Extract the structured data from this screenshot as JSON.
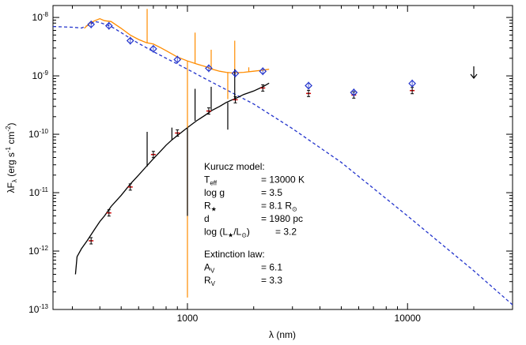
{
  "chart_data": {
    "type": "line",
    "title": "",
    "xlabel": "λ (nm)",
    "ylabel": "λF_λ (erg s⁻¹ cm⁻²)",
    "xscale": "log",
    "yscale": "log",
    "xlim": [
      245,
      30000
    ],
    "ylim": [
      1e-13,
      1.6e-08
    ],
    "x_ticks": [
      {
        "value": 1000,
        "label": "1000"
      },
      {
        "value": 10000,
        "label": "10000"
      }
    ],
    "y_ticks": [
      {
        "value": 1e-13,
        "base": "10",
        "exp": "-13"
      },
      {
        "value": 1e-12,
        "base": "10",
        "exp": "-12"
      },
      {
        "value": 1e-11,
        "base": "10",
        "exp": "-11"
      },
      {
        "value": 1e-10,
        "base": "10",
        "exp": "-10"
      },
      {
        "value": 1e-09,
        "base": "10",
        "exp": "-9"
      },
      {
        "value": 1e-08,
        "base": "10",
        "exp": "-8"
      }
    ],
    "grid": false,
    "colors": {
      "model": "#2233cc",
      "dereddened": "#ff8c00",
      "observed": "#000000",
      "observed_points": "#cc0000",
      "dereddened_points": "#2233cc"
    },
    "series": [
      {
        "id": "kurucz_model",
        "style": "dashed",
        "points": [
          [
            245,
            7e-09
          ],
          [
            300,
            6.8e-09
          ],
          [
            330,
            6.6e-09
          ],
          [
            360,
            7.5e-09
          ],
          [
            380,
            8.5e-09
          ],
          [
            400,
            8.2e-09
          ],
          [
            450,
            7e-09
          ],
          [
            500,
            5.5e-09
          ],
          [
            560,
            4.2e-09
          ],
          [
            600,
            3.6e-09
          ],
          [
            700,
            2.6e-09
          ],
          [
            800,
            2e-09
          ],
          [
            900,
            1.6e-09
          ],
          [
            1000,
            1.3e-09
          ],
          [
            1200,
            9e-10
          ],
          [
            1500,
            5.8e-10
          ],
          [
            2000,
            3.3e-10
          ],
          [
            3000,
            1.25e-10
          ],
          [
            5000,
            3.3e-11
          ],
          [
            10000,
            4e-12
          ],
          [
            20000,
            4.6e-13
          ],
          [
            30000,
            1.2e-13
          ]
        ]
      },
      {
        "id": "dereddened_spectrum",
        "style": "solid",
        "points": [
          [
            340,
            6.5e-09
          ],
          [
            360,
            8e-09
          ],
          [
            380,
            8.8e-09
          ],
          [
            400,
            9.5e-09
          ],
          [
            420,
            8.8e-09
          ],
          [
            450,
            8.5e-09
          ],
          [
            500,
            6.5e-09
          ],
          [
            550,
            5e-09
          ],
          [
            600,
            4.2e-09
          ],
          [
            650,
            3.7e-09
          ],
          [
            700,
            3.5e-09
          ],
          [
            760,
            3e-09
          ],
          [
            800,
            2.7e-09
          ],
          [
            900,
            2.1e-09
          ],
          [
            1000,
            1.8e-09
          ],
          [
            1100,
            1.6e-09
          ],
          [
            1200,
            1.45e-09
          ],
          [
            1300,
            1.3e-09
          ],
          [
            1400,
            1.2e-09
          ],
          [
            1500,
            1.15e-09
          ],
          [
            1600,
            1.12e-09
          ],
          [
            1800,
            1.15e-09
          ],
          [
            2000,
            1.2e-09
          ],
          [
            2200,
            1.25e-09
          ],
          [
            2350,
            1.3e-09
          ]
        ]
      },
      {
        "id": "observed_spectrum",
        "style": "solid",
        "points": [
          [
            310,
            4e-13
          ],
          [
            315,
            8e-13
          ],
          [
            330,
            1.1e-12
          ],
          [
            350,
            1.5e-12
          ],
          [
            380,
            2.4e-12
          ],
          [
            400,
            3.2e-12
          ],
          [
            420,
            4e-12
          ],
          [
            450,
            5.8e-12
          ],
          [
            500,
            9e-12
          ],
          [
            550,
            1.4e-11
          ],
          [
            600,
            2e-11
          ],
          [
            650,
            2.8e-11
          ],
          [
            700,
            3.8e-11
          ],
          [
            750,
            5e-11
          ],
          [
            800,
            6.5e-11
          ],
          [
            850,
            8e-11
          ],
          [
            900,
            9.5e-11
          ],
          [
            1000,
            1.3e-10
          ],
          [
            1100,
            1.7e-10
          ],
          [
            1200,
            2.1e-10
          ],
          [
            1300,
            2.6e-10
          ],
          [
            1400,
            3e-10
          ],
          [
            1500,
            3.5e-10
          ],
          [
            1600,
            3.9e-10
          ],
          [
            1700,
            4.3e-10
          ],
          [
            1800,
            4.8e-10
          ],
          [
            2000,
            5.5e-10
          ],
          [
            2200,
            6.5e-10
          ],
          [
            2350,
            7.5e-10
          ]
        ]
      }
    ],
    "spikes": [
      {
        "series": "dereddened_spectrum",
        "x": 656,
        "y_from": 3.6e-09,
        "y_to": 1.4e-08
      },
      {
        "series": "dereddened_spectrum",
        "x": 1000,
        "y_from": 1.8e-09,
        "y_to": 1.6e-13
      },
      {
        "series": "dereddened_spectrum",
        "x": 1083,
        "y_from": 1.6e-09,
        "y_to": 5.5e-09
      },
      {
        "series": "dereddened_spectrum",
        "x": 1282,
        "y_from": 1.3e-09,
        "y_to": 2.8e-09
      },
      {
        "series": "dereddened_spectrum",
        "x": 1525,
        "y_from": 1.15e-09,
        "y_to": 4e-10
      },
      {
        "series": "dereddened_spectrum",
        "x": 1640,
        "y_from": 1.12e-09,
        "y_to": 4e-09
      },
      {
        "series": "dereddened_spectrum",
        "x": 1900,
        "y_from": 1.18e-09,
        "y_to": 1.4e-09
      },
      {
        "series": "observed_spectrum",
        "x": 656,
        "y_from": 2.8e-11,
        "y_to": 1.1e-10
      },
      {
        "series": "observed_spectrum",
        "x": 850,
        "y_from": 8e-11,
        "y_to": 1.3e-10
      },
      {
        "series": "observed_spectrum",
        "x": 1000,
        "y_from": 1.3e-10,
        "y_to": 4e-12
      },
      {
        "series": "observed_spectrum",
        "x": 1083,
        "y_from": 1.7e-10,
        "y_to": 6e-10
      },
      {
        "series": "observed_spectrum",
        "x": 1282,
        "y_from": 2.6e-10,
        "y_to": 6.5e-10
      },
      {
        "series": "observed_spectrum",
        "x": 1525,
        "y_from": 3.5e-10,
        "y_to": 1.2e-10
      },
      {
        "series": "observed_spectrum",
        "x": 1640,
        "y_from": 4e-10,
        "y_to": 1.3e-09
      }
    ],
    "photometry_observed": [
      {
        "x": 365,
        "y": 1.5e-12
      },
      {
        "x": 440,
        "y": 4.5e-12
      },
      {
        "x": 550,
        "y": 1.25e-11
      },
      {
        "x": 700,
        "y": 4.5e-11
      },
      {
        "x": 900,
        "y": 1.05e-10
      },
      {
        "x": 1250,
        "y": 2.5e-10
      },
      {
        "x": 1650,
        "y": 3.9e-10
      },
      {
        "x": 2200,
        "y": 6.2e-10
      },
      {
        "x": 3550,
        "y": 5e-10
      },
      {
        "x": 5700,
        "y": 4.7e-10
      },
      {
        "x": 10500,
        "y": 5.6e-10
      }
    ],
    "photometry_dereddened": [
      {
        "x": 365,
        "y": 7.6e-09
      },
      {
        "x": 440,
        "y": 7.2e-09
      },
      {
        "x": 550,
        "y": 4e-09
      },
      {
        "x": 700,
        "y": 2.9e-09
      },
      {
        "x": 900,
        "y": 1.9e-09
      },
      {
        "x": 1250,
        "y": 1.35e-09
      },
      {
        "x": 1650,
        "y": 1.1e-09
      },
      {
        "x": 2200,
        "y": 1.2e-09
      },
      {
        "x": 3550,
        "y": 6.8e-10
      },
      {
        "x": 5700,
        "y": 5.2e-10
      },
      {
        "x": 10500,
        "y": 7.4e-10
      }
    ],
    "upper_limit": {
      "x": 20000,
      "y": 1.1e-09
    },
    "annotations": {
      "model_title": "Kurucz model:",
      "params": [
        {
          "label": "T",
          "sub": "eff",
          "value": "= 13000 K"
        },
        {
          "label": "log g",
          "value": "= 3.5"
        },
        {
          "label": "R",
          "sub": "★",
          "value": "= 8.1 R",
          "value_sub": "⊙"
        },
        {
          "label": "d",
          "value": "= 1980 pc"
        },
        {
          "label": "log (L",
          "sub": "★",
          "mid": "/L",
          "sub2": "⊙",
          "tail": ")",
          "value": "= 3.2"
        }
      ],
      "ext_title": "Extinction law:",
      "ext_params": [
        {
          "label": "A",
          "sub": "V",
          "value": "= 6.1"
        },
        {
          "label": "R",
          "sub": "V",
          "value": "= 3.3"
        }
      ]
    }
  }
}
